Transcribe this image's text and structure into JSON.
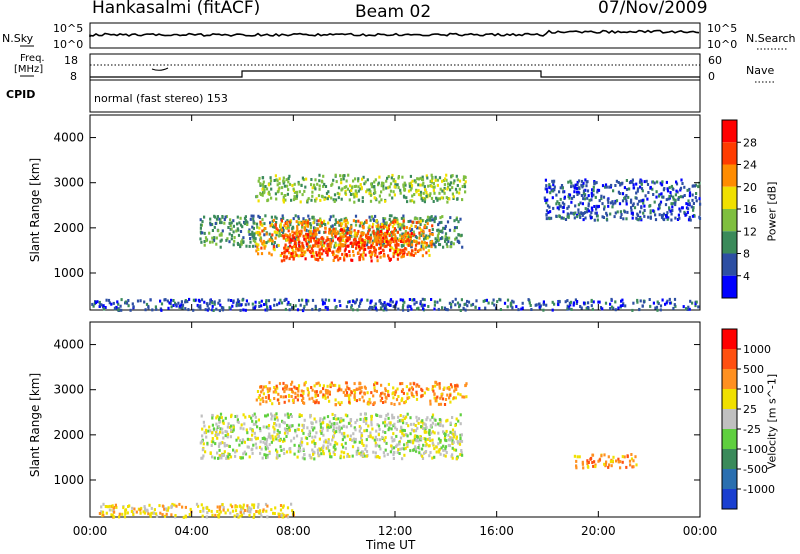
{
  "header": {
    "station": "Hankasalmi (fitACF)",
    "beam": "Beam 02",
    "date": "07/Nov/2009"
  },
  "nsky": {
    "label": "N.Sky",
    "ticks": [
      "10^5",
      "10^0"
    ],
    "right_label": "N.Search",
    "right_ticks": [
      "10^5",
      "10^0"
    ]
  },
  "freq": {
    "label_line1": "Freq.",
    "label_line2": "[MHz]",
    "ticks": [
      "18",
      "8"
    ],
    "right_label": "Nave",
    "right_ticks": [
      "60",
      "0"
    ],
    "cpid_label": "CPID",
    "cpid_text": "normal (fast stereo) 153"
  },
  "power_panel": {
    "ylabel": "Slant Range [km]",
    "yticks": [
      "4000",
      "3000",
      "2000",
      "1000"
    ],
    "colorbar_label": "Power [dB]",
    "colorbar_ticks": [
      "28",
      "24",
      "20",
      "16",
      "12",
      "8",
      "4"
    ],
    "colors": [
      "#0000ff",
      "#2d4fa3",
      "#3a8a5a",
      "#7fbf3f",
      "#f0e000",
      "#ff8c00",
      "#ff3c00",
      "#ff0000"
    ]
  },
  "velocity_panel": {
    "ylabel": "Slant Range [km]",
    "yticks": [
      "4000",
      "3000",
      "2000",
      "1000"
    ],
    "colorbar_label": "Velocity [m s^-1]",
    "colorbar_ticks": [
      "1000",
      "500",
      "100",
      "25",
      "-25",
      "-100",
      "-500",
      "-1000"
    ],
    "colors": [
      "#1a3fd0",
      "#2a6fb0",
      "#3a8a5a",
      "#5fcf3f",
      "#c0c0c0",
      "#f0e000",
      "#ff9020",
      "#ff5010",
      "#ff0000"
    ]
  },
  "time_axis": {
    "ticks": [
      "00:00",
      "04:00",
      "08:00",
      "12:00",
      "16:00",
      "20:00",
      "00:00"
    ],
    "xlabel": "Time UT"
  },
  "chart_data": {
    "type": "heatmap",
    "x_range_hours": [
      0,
      24
    ],
    "y_range_km": [
      180,
      4500
    ],
    "power_range_db": [
      0,
      32
    ],
    "velocity_range": [
      -1200,
      1200
    ],
    "regions": [
      {
        "panel": "power",
        "t0": 4.3,
        "t1": 14.6,
        "r0": 1600,
        "r1": 2300,
        "level": 2
      },
      {
        "panel": "power",
        "t0": 6.5,
        "t1": 13.5,
        "r0": 1400,
        "r1": 2200,
        "level": 5
      },
      {
        "panel": "power",
        "t0": 7.5,
        "t1": 12.8,
        "r0": 1300,
        "r1": 2000,
        "level": 6
      },
      {
        "panel": "power",
        "t0": 6.5,
        "t1": 14.8,
        "r0": 2600,
        "r1": 3200,
        "level": 3
      },
      {
        "panel": "power",
        "t0": 17.8,
        "t1": 24,
        "r0": 2200,
        "r1": 3100,
        "level": 1
      },
      {
        "panel": "power",
        "t0": 0,
        "t1": 24,
        "r0": 200,
        "r1": 450,
        "level": 1
      },
      {
        "panel": "velocity",
        "t0": 4.3,
        "t1": 14.6,
        "r0": 1500,
        "r1": 2500,
        "level": 4
      },
      {
        "panel": "velocity",
        "t0": 6.5,
        "t1": 14.8,
        "r0": 2700,
        "r1": 3200,
        "level": 6
      },
      {
        "panel": "velocity",
        "t0": 19,
        "t1": 21.5,
        "r0": 1300,
        "r1": 1600,
        "level": 6
      },
      {
        "panel": "velocity",
        "t0": 0,
        "t1": 8,
        "r0": 200,
        "r1": 500,
        "level": 5
      }
    ]
  }
}
